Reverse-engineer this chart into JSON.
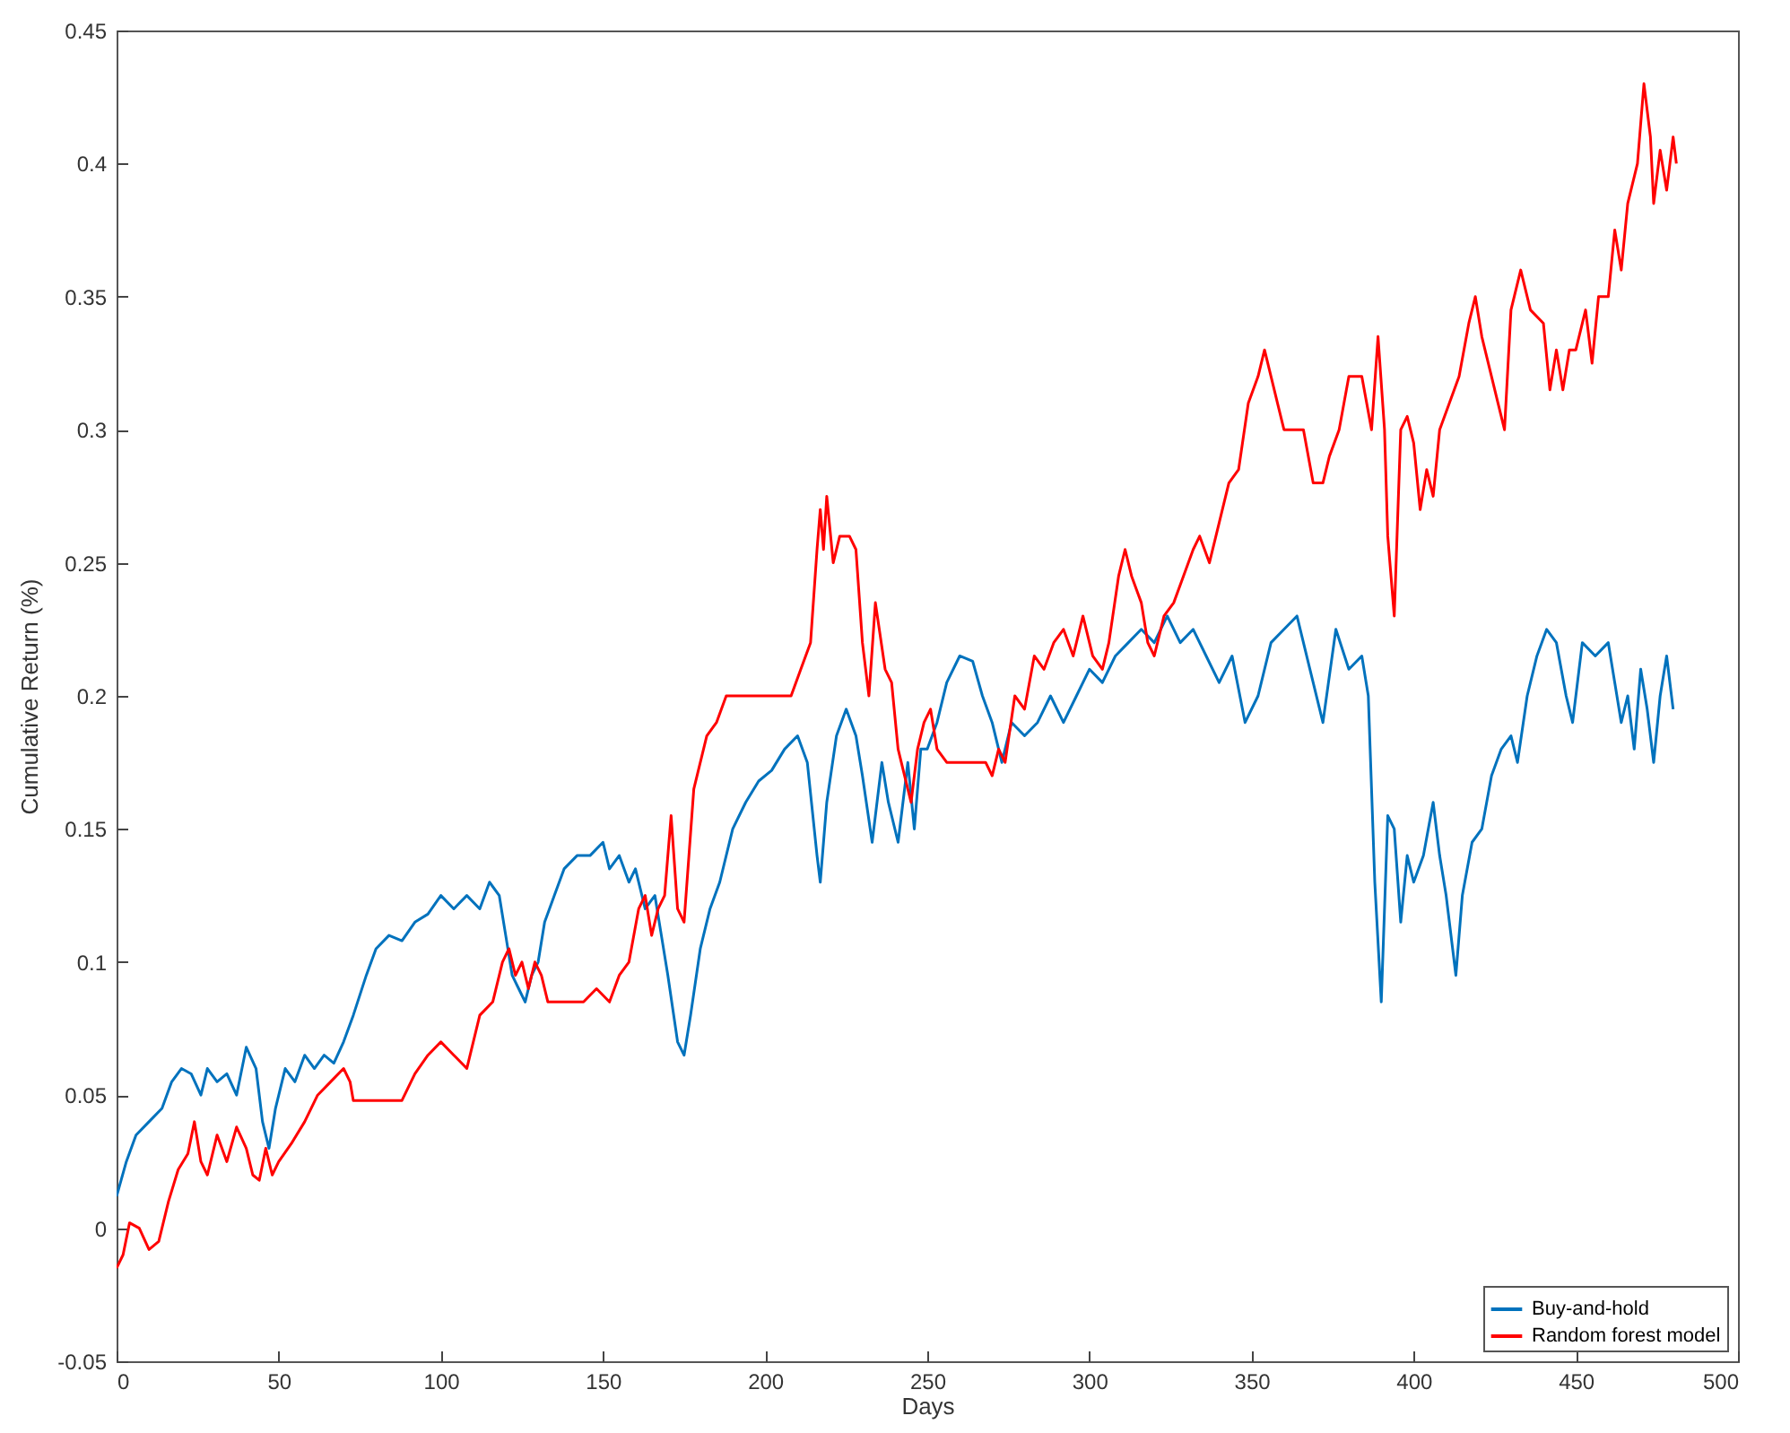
{
  "chart_data": {
    "type": "line",
    "xlabel": "Days",
    "ylabel": "Cumulative Return (%)",
    "xlim": [
      0,
      500
    ],
    "xticks": [
      0,
      50,
      100,
      150,
      200,
      250,
      300,
      350,
      400,
      450,
      500
    ],
    "ylim": [
      -0.05,
      0.45
    ],
    "yticks": [
      -0.05,
      0,
      0.05,
      0.1,
      0.15,
      0.2,
      0.25,
      0.3,
      0.35,
      0.4,
      0.45
    ],
    "grid": false,
    "legend": "bottom right",
    "line_style": "solid",
    "series": [
      {
        "name": "Buy-and-hold",
        "color": "#0072bd",
        "x": [
          0,
          3,
          6,
          10,
          14,
          17,
          20,
          23,
          26,
          28,
          31,
          34,
          37,
          40,
          43,
          45,
          47,
          49,
          52,
          55,
          58,
          61,
          64,
          67,
          70,
          73,
          77,
          80,
          84,
          88,
          92,
          96,
          100,
          104,
          108,
          112,
          115,
          118,
          120,
          122,
          124,
          126,
          128,
          130,
          132,
          135,
          138,
          142,
          146,
          150,
          152,
          155,
          158,
          160,
          163,
          166,
          168,
          170,
          173,
          175,
          177,
          180,
          183,
          186,
          190,
          194,
          198,
          202,
          206,
          210,
          213,
          216,
          217,
          219,
          222,
          225,
          228,
          230,
          233,
          236,
          238,
          241,
          244,
          246,
          248,
          250,
          253,
          256,
          260,
          264,
          267,
          270,
          273,
          276,
          280,
          284,
          288,
          292,
          296,
          300,
          304,
          308,
          312,
          316,
          320,
          324,
          328,
          332,
          336,
          340,
          344,
          348,
          352,
          356,
          360,
          364,
          368,
          372,
          376,
          380,
          384,
          386,
          388,
          390,
          392,
          394,
          396,
          398,
          400,
          403,
          406,
          408,
          410,
          413,
          415,
          418,
          421,
          424,
          427,
          430,
          432,
          435,
          438,
          441,
          444,
          447,
          449,
          452,
          456,
          460,
          462,
          464,
          466,
          468,
          470,
          472,
          474,
          476,
          478,
          480
        ],
        "values": [
          0.012,
          0.025,
          0.035,
          0.04,
          0.045,
          0.055,
          0.06,
          0.058,
          0.05,
          0.06,
          0.055,
          0.058,
          0.05,
          0.068,
          0.06,
          0.04,
          0.03,
          0.045,
          0.06,
          0.055,
          0.065,
          0.06,
          0.065,
          0.062,
          0.07,
          0.08,
          0.095,
          0.105,
          0.11,
          0.108,
          0.115,
          0.118,
          0.125,
          0.12,
          0.125,
          0.12,
          0.13,
          0.125,
          0.11,
          0.095,
          0.09,
          0.085,
          0.095,
          0.1,
          0.115,
          0.125,
          0.135,
          0.14,
          0.14,
          0.145,
          0.135,
          0.14,
          0.13,
          0.135,
          0.12,
          0.125,
          0.11,
          0.095,
          0.07,
          0.065,
          0.08,
          0.105,
          0.12,
          0.13,
          0.15,
          0.16,
          0.168,
          0.172,
          0.18,
          0.185,
          0.175,
          0.14,
          0.13,
          0.16,
          0.185,
          0.195,
          0.185,
          0.17,
          0.145,
          0.175,
          0.16,
          0.145,
          0.175,
          0.15,
          0.18,
          0.18,
          0.19,
          0.205,
          0.215,
          0.213,
          0.2,
          0.19,
          0.175,
          0.19,
          0.185,
          0.19,
          0.2,
          0.19,
          0.2,
          0.21,
          0.205,
          0.215,
          0.22,
          0.225,
          0.22,
          0.23,
          0.22,
          0.225,
          0.215,
          0.205,
          0.215,
          0.19,
          0.2,
          0.22,
          0.225,
          0.23,
          0.21,
          0.19,
          0.225,
          0.21,
          0.215,
          0.2,
          0.13,
          0.085,
          0.155,
          0.15,
          0.115,
          0.14,
          0.13,
          0.14,
          0.16,
          0.14,
          0.125,
          0.095,
          0.125,
          0.145,
          0.15,
          0.17,
          0.18,
          0.185,
          0.175,
          0.2,
          0.215,
          0.225,
          0.22,
          0.2,
          0.19,
          0.22,
          0.215,
          0.22,
          0.205,
          0.19,
          0.2,
          0.18,
          0.21,
          0.195,
          0.175,
          0.2,
          0.215,
          0.195
        ]
      },
      {
        "name": "Random forest model",
        "color": "#ff0000",
        "x": [
          0,
          2,
          4,
          7,
          10,
          13,
          16,
          19,
          22,
          24,
          26,
          28,
          31,
          34,
          37,
          40,
          42,
          44,
          46,
          48,
          50,
          54,
          58,
          62,
          66,
          70,
          72,
          73,
          80,
          88,
          92,
          96,
          100,
          104,
          108,
          112,
          116,
          119,
          121,
          123,
          125,
          127,
          129,
          131,
          133,
          138,
          144,
          148,
          152,
          155,
          158,
          161,
          163,
          165,
          167,
          169,
          171,
          173,
          175,
          178,
          182,
          185,
          188,
          192,
          200,
          208,
          211,
          214,
          216,
          217,
          218,
          219,
          221,
          223,
          226,
          228,
          230,
          232,
          234,
          237,
          239,
          241,
          243,
          245,
          247,
          249,
          251,
          253,
          256,
          262,
          268,
          270,
          272,
          274,
          277,
          280,
          283,
          286,
          289,
          292,
          295,
          298,
          301,
          304,
          306,
          309,
          311,
          313,
          316,
          318,
          320,
          323,
          326,
          329,
          332,
          334,
          337,
          340,
          343,
          346,
          349,
          352,
          354,
          356,
          358,
          360,
          363,
          366,
          369,
          372,
          374,
          377,
          380,
          384,
          387,
          389,
          391,
          392,
          394,
          396,
          398,
          400,
          402,
          404,
          406,
          408,
          411,
          414,
          417,
          419,
          421,
          424,
          426,
          428,
          430,
          433,
          436,
          440,
          442,
          444,
          446,
          448,
          450,
          453,
          455,
          457,
          460,
          462,
          464,
          466,
          469,
          471,
          473,
          474,
          476,
          478,
          480,
          481
        ],
        "values": [
          -0.015,
          -0.01,
          0.002,
          0.0,
          -0.008,
          -0.005,
          0.01,
          0.022,
          0.028,
          0.04,
          0.025,
          0.02,
          0.035,
          0.025,
          0.038,
          0.03,
          0.02,
          0.018,
          0.03,
          0.02,
          0.025,
          0.032,
          0.04,
          0.05,
          0.055,
          0.06,
          0.055,
          0.048,
          0.048,
          0.048,
          0.058,
          0.065,
          0.07,
          0.065,
          0.06,
          0.08,
          0.085,
          0.1,
          0.105,
          0.095,
          0.1,
          0.09,
          0.1,
          0.095,
          0.085,
          0.085,
          0.085,
          0.09,
          0.085,
          0.095,
          0.1,
          0.12,
          0.125,
          0.11,
          0.12,
          0.125,
          0.155,
          0.12,
          0.115,
          0.165,
          0.185,
          0.19,
          0.2,
          0.2,
          0.2,
          0.2,
          0.21,
          0.22,
          0.255,
          0.27,
          0.255,
          0.275,
          0.25,
          0.26,
          0.26,
          0.255,
          0.22,
          0.2,
          0.235,
          0.21,
          0.205,
          0.18,
          0.17,
          0.16,
          0.18,
          0.19,
          0.195,
          0.18,
          0.175,
          0.175,
          0.175,
          0.17,
          0.18,
          0.175,
          0.2,
          0.195,
          0.215,
          0.21,
          0.22,
          0.225,
          0.215,
          0.23,
          0.215,
          0.21,
          0.22,
          0.245,
          0.255,
          0.245,
          0.235,
          0.22,
          0.215,
          0.23,
          0.235,
          0.245,
          0.255,
          0.26,
          0.25,
          0.265,
          0.28,
          0.285,
          0.31,
          0.32,
          0.33,
          0.32,
          0.31,
          0.3,
          0.3,
          0.3,
          0.28,
          0.28,
          0.29,
          0.3,
          0.32,
          0.32,
          0.3,
          0.335,
          0.3,
          0.26,
          0.23,
          0.3,
          0.305,
          0.295,
          0.27,
          0.285,
          0.275,
          0.3,
          0.31,
          0.32,
          0.34,
          0.35,
          0.335,
          0.32,
          0.31,
          0.3,
          0.345,
          0.36,
          0.345,
          0.34,
          0.315,
          0.33,
          0.315,
          0.33,
          0.33,
          0.345,
          0.325,
          0.35,
          0.35,
          0.375,
          0.36,
          0.385,
          0.4,
          0.43,
          0.41,
          0.385,
          0.405,
          0.39,
          0.41,
          0.4
        ]
      }
    ]
  }
}
